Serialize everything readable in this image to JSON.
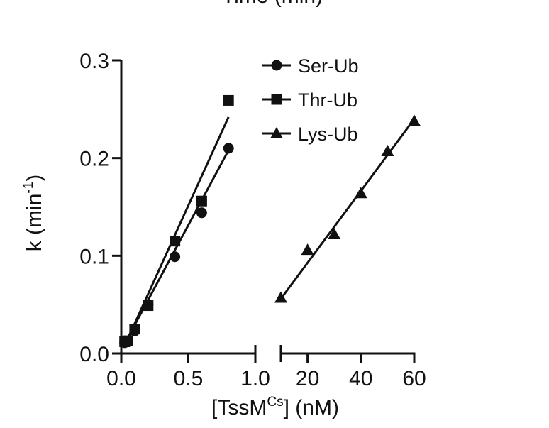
{
  "top_text": "Time (min)",
  "colors": {
    "ink": "#111111",
    "background": "#ffffff"
  },
  "chart_data": {
    "type": "scatter",
    "title": "",
    "ylabel": "k (min",
    "ylabel_sup": "-1",
    "ylabel_tail": ")",
    "xlabel": "[TssM",
    "xlabel_sup": "Cs",
    "xlabel_tail": "] (nM)",
    "ylim": [
      0,
      0.3
    ],
    "yticks": [
      0.0,
      0.1,
      0.2,
      0.3
    ],
    "ytick_labels": [
      "0.0",
      "0.1",
      "0.2",
      "0.3"
    ],
    "broken_x_axis": true,
    "x_segments": [
      {
        "xlim": [
          0,
          1.0
        ],
        "ticks": [
          0.0,
          0.5,
          1.0
        ],
        "tick_labels": [
          "0.0",
          "0.5",
          "1.0"
        ]
      },
      {
        "xlim": [
          10,
          60
        ],
        "ticks": [
          20,
          40,
          60
        ],
        "tick_labels": [
          "20",
          "40",
          "60"
        ]
      }
    ],
    "legend_position": "top-right",
    "series": [
      {
        "name": "Ser-Ub",
        "marker": "circle",
        "segment": 0,
        "x": [
          0.025,
          0.05,
          0.1,
          0.2,
          0.4,
          0.6,
          0.8
        ],
        "y": [
          0.011,
          0.012,
          0.023,
          0.05,
          0.099,
          0.144,
          0.21
        ],
        "fit": {
          "x": [
            0.025,
            0.8
          ],
          "y": [
            0.01,
            0.208
          ]
        }
      },
      {
        "name": "Thr-Ub",
        "marker": "square",
        "segment": 0,
        "x": [
          0.025,
          0.05,
          0.1,
          0.2,
          0.4,
          0.6,
          0.8
        ],
        "y": [
          0.012,
          0.013,
          0.025,
          0.049,
          0.115,
          0.156,
          0.259
        ],
        "fit": {
          "x": [
            0.025,
            0.8
          ],
          "y": [
            0.008,
            0.242
          ]
        }
      },
      {
        "name": "Lys-Ub",
        "marker": "triangle",
        "segment": 1,
        "x": [
          10,
          20,
          30,
          40,
          50,
          60
        ],
        "y": [
          0.057,
          0.106,
          0.122,
          0.164,
          0.207,
          0.238
        ],
        "fit": {
          "x": [
            10,
            60
          ],
          "y": [
            0.056,
            0.24
          ]
        }
      }
    ]
  }
}
